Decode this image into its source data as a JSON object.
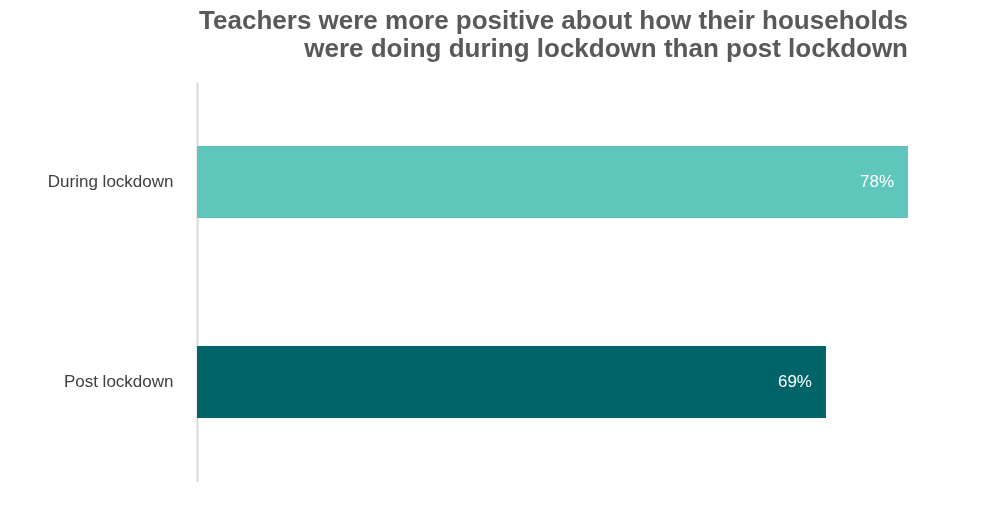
{
  "chart_data": {
    "type": "bar",
    "orientation": "horizontal",
    "title": "Teachers were more positive about how their households\nwere doing during lockdown than post lockdown",
    "categories": [
      "During lockdown",
      "Post lockdown"
    ],
    "values": [
      78,
      69
    ],
    "value_labels": [
      "78%",
      "69%"
    ],
    "colors": [
      "#5fc6bc",
      "#006468"
    ]
  }
}
